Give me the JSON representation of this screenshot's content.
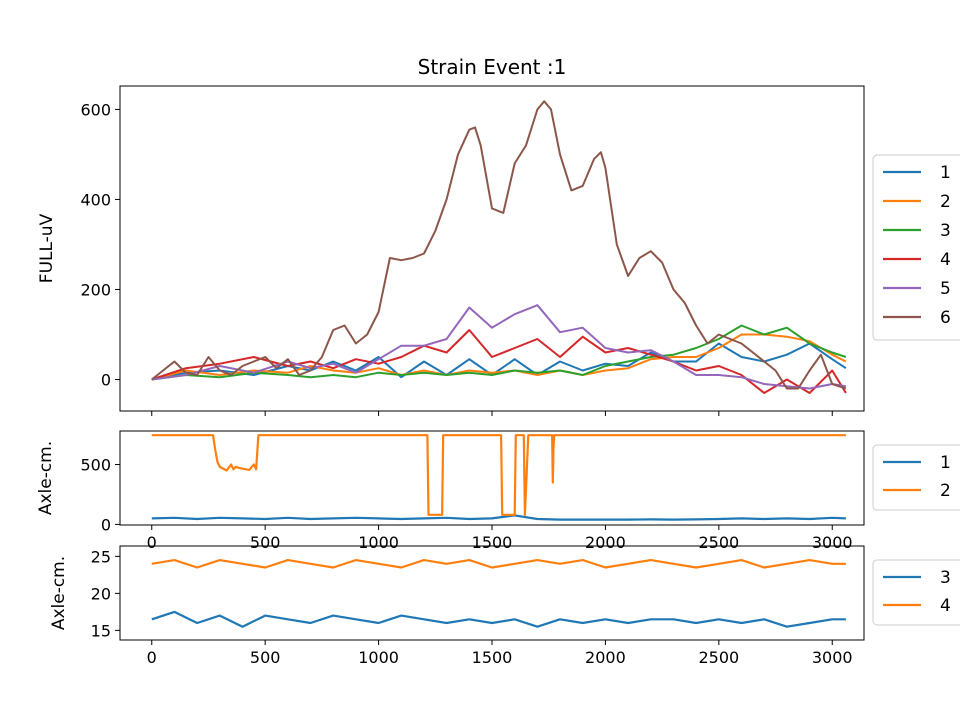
{
  "chart_data": [
    {
      "type": "line",
      "title": "Strain Event :1",
      "xlabel": "",
      "ylabel": "FULL-uV",
      "xlim": [
        -140,
        3140
      ],
      "ylim": [
        -70,
        652
      ],
      "xticks": [
        0,
        500,
        1000,
        1500,
        2000,
        2500,
        3000
      ],
      "xtick_labels_visible": false,
      "yticks": [
        0,
        200,
        400,
        600
      ],
      "legend": "outside-right",
      "series": [
        {
          "name": "1",
          "color": "#1f77b4",
          "x": [
            0,
            150,
            300,
            450,
            600,
            700,
            800,
            900,
            1000,
            1100,
            1200,
            1300,
            1400,
            1500,
            1600,
            1700,
            1800,
            1900,
            2000,
            2100,
            2200,
            2300,
            2400,
            2500,
            2600,
            2700,
            2800,
            2900,
            3000,
            3060
          ],
          "y": [
            0,
            15,
            20,
            10,
            30,
            20,
            40,
            20,
            50,
            5,
            40,
            10,
            45,
            10,
            45,
            10,
            40,
            20,
            35,
            30,
            60,
            40,
            40,
            80,
            50,
            40,
            55,
            80,
            45,
            25
          ]
        },
        {
          "name": "2",
          "color": "#ff7f0e",
          "x": [
            0,
            150,
            300,
            450,
            600,
            700,
            800,
            900,
            1000,
            1100,
            1200,
            1300,
            1400,
            1500,
            1600,
            1700,
            1800,
            1900,
            2000,
            2100,
            2200,
            2300,
            2400,
            2500,
            2600,
            2700,
            2800,
            2900,
            3000,
            3060
          ],
          "y": [
            0,
            20,
            10,
            20,
            15,
            30,
            20,
            15,
            25,
            10,
            20,
            10,
            20,
            15,
            20,
            10,
            20,
            10,
            20,
            25,
            45,
            50,
            50,
            70,
            100,
            100,
            95,
            85,
            55,
            40
          ]
        },
        {
          "name": "3",
          "color": "#2ca02c",
          "x": [
            0,
            150,
            300,
            450,
            600,
            700,
            800,
            900,
            1000,
            1100,
            1200,
            1300,
            1400,
            1500,
            1600,
            1700,
            1800,
            1900,
            2000,
            2100,
            2200,
            2300,
            2400,
            2500,
            2600,
            2700,
            2800,
            2900,
            3000,
            3060
          ],
          "y": [
            0,
            10,
            5,
            15,
            10,
            5,
            10,
            5,
            15,
            10,
            15,
            10,
            15,
            10,
            20,
            15,
            20,
            10,
            30,
            40,
            50,
            55,
            70,
            90,
            120,
            100,
            115,
            80,
            60,
            50
          ]
        },
        {
          "name": "4",
          "color": "#d62728",
          "x": [
            0,
            150,
            300,
            450,
            600,
            700,
            800,
            900,
            1000,
            1100,
            1200,
            1300,
            1400,
            1500,
            1600,
            1700,
            1800,
            1900,
            2000,
            2100,
            2200,
            2300,
            2400,
            2500,
            2600,
            2700,
            2800,
            2900,
            3000,
            3060
          ],
          "y": [
            0,
            25,
            35,
            50,
            30,
            40,
            25,
            45,
            35,
            50,
            75,
            60,
            110,
            50,
            70,
            90,
            50,
            95,
            60,
            70,
            55,
            40,
            20,
            30,
            10,
            -30,
            0,
            -30,
            20,
            -30
          ]
        },
        {
          "name": "5",
          "color": "#9467bd",
          "x": [
            0,
            150,
            300,
            450,
            600,
            700,
            800,
            900,
            1000,
            1100,
            1200,
            1300,
            1400,
            1500,
            1600,
            1700,
            1800,
            1900,
            2000,
            2100,
            2200,
            2300,
            2400,
            2500,
            2600,
            2700,
            2800,
            2900,
            3000,
            3060
          ],
          "y": [
            0,
            10,
            30,
            15,
            40,
            25,
            35,
            15,
            45,
            75,
            75,
            90,
            160,
            115,
            145,
            165,
            105,
            115,
            70,
            60,
            65,
            40,
            10,
            10,
            5,
            -10,
            -15,
            -20,
            -10,
            -15
          ]
        },
        {
          "name": "6",
          "color": "#8c564b",
          "x": [
            0,
            50,
            100,
            150,
            200,
            250,
            300,
            350,
            400,
            450,
            500,
            550,
            600,
            650,
            700,
            750,
            800,
            850,
            900,
            950,
            1000,
            1050,
            1100,
            1150,
            1200,
            1250,
            1300,
            1350,
            1400,
            1425,
            1450,
            1500,
            1550,
            1600,
            1650,
            1700,
            1730,
            1760,
            1800,
            1850,
            1900,
            1950,
            1980,
            2000,
            2050,
            2100,
            2150,
            2200,
            2250,
            2300,
            2350,
            2400,
            2450,
            2500,
            2550,
            2600,
            2650,
            2700,
            2750,
            2800,
            2850,
            2900,
            2950,
            3000,
            3060
          ],
          "y": [
            0,
            20,
            40,
            15,
            10,
            50,
            20,
            10,
            30,
            40,
            50,
            25,
            45,
            10,
            20,
            50,
            110,
            120,
            80,
            100,
            150,
            270,
            265,
            270,
            280,
            330,
            400,
            500,
            555,
            560,
            520,
            380,
            370,
            480,
            520,
            600,
            618,
            600,
            500,
            420,
            430,
            490,
            505,
            470,
            300,
            230,
            270,
            285,
            260,
            200,
            170,
            120,
            80,
            100,
            90,
            80,
            60,
            40,
            20,
            -20,
            -20,
            20,
            55,
            -10,
            -20
          ]
        }
      ]
    },
    {
      "type": "line",
      "xlabel": "",
      "ylabel": "Axle-cm.",
      "xlim": [
        -140,
        3140
      ],
      "ylim": [
        -5,
        780
      ],
      "yticks": [
        0,
        500
      ],
      "xticks": [
        0,
        500,
        1000,
        1500,
        2000,
        2500,
        3000
      ],
      "xtick_labels_visible": true,
      "legend": "outside-right",
      "series": [
        {
          "name": "1",
          "color": "#1f77b4",
          "x": [
            0,
            100,
            200,
            300,
            400,
            500,
            600,
            700,
            800,
            900,
            1000,
            1100,
            1200,
            1300,
            1400,
            1500,
            1600,
            1700,
            1800,
            1900,
            2000,
            2100,
            2200,
            2300,
            2400,
            2500,
            2600,
            2700,
            2800,
            2900,
            3000,
            3060
          ],
          "y": [
            50,
            55,
            45,
            55,
            50,
            45,
            55,
            45,
            50,
            55,
            50,
            45,
            50,
            55,
            45,
            50,
            75,
            45,
            40,
            40,
            40,
            40,
            42,
            40,
            42,
            45,
            50,
            45,
            50,
            45,
            55,
            50
          ]
        },
        {
          "name": "2",
          "color": "#ff7f0e",
          "x": [
            0,
            270,
            280,
            290,
            300,
            330,
            350,
            360,
            370,
            400,
            430,
            450,
            460,
            470,
            1215,
            1220,
            1240,
            1280,
            1285,
            1540,
            1545,
            1560,
            1600,
            1605,
            1640,
            1645,
            1660,
            1765,
            1768,
            1771,
            1774,
            3060
          ],
          "y": [
            745,
            745,
            620,
            520,
            480,
            450,
            500,
            460,
            480,
            465,
            455,
            500,
            460,
            745,
            745,
            80,
            80,
            80,
            745,
            745,
            80,
            80,
            80,
            745,
            745,
            80,
            745,
            745,
            350,
            650,
            745,
            745
          ]
        }
      ]
    },
    {
      "type": "line",
      "xlabel": "",
      "ylabel": "Axle-cm.",
      "xlim": [
        -140,
        3140
      ],
      "ylim": [
        13.7,
        26.4
      ],
      "yticks": [
        15,
        20,
        25
      ],
      "xticks": [
        0,
        500,
        1000,
        1500,
        2000,
        2500,
        3000
      ],
      "xtick_labels_visible": true,
      "legend": "outside-right",
      "series": [
        {
          "name": "3",
          "color": "#1f77b4",
          "x": [
            0,
            100,
            200,
            300,
            400,
            500,
            600,
            700,
            800,
            900,
            1000,
            1100,
            1200,
            1300,
            1400,
            1500,
            1600,
            1700,
            1800,
            1900,
            2000,
            2100,
            2200,
            2300,
            2400,
            2500,
            2600,
            2700,
            2800,
            2900,
            3000,
            3060
          ],
          "y": [
            16.5,
            17.5,
            16.0,
            17.0,
            15.5,
            17.0,
            16.5,
            16.0,
            17.0,
            16.5,
            16.0,
            17.0,
            16.5,
            16.0,
            16.5,
            16.0,
            16.5,
            15.5,
            16.5,
            16.0,
            16.5,
            16.0,
            16.5,
            16.5,
            16.0,
            16.5,
            16.0,
            16.5,
            15.5,
            16.0,
            16.5,
            16.5
          ]
        },
        {
          "name": "4",
          "color": "#ff7f0e",
          "x": [
            0,
            100,
            200,
            300,
            400,
            500,
            600,
            700,
            800,
            900,
            1000,
            1100,
            1200,
            1300,
            1400,
            1500,
            1600,
            1700,
            1800,
            1900,
            2000,
            2100,
            2200,
            2300,
            2400,
            2500,
            2600,
            2700,
            2800,
            2900,
            3000,
            3060
          ],
          "y": [
            24.0,
            24.5,
            23.5,
            24.5,
            24.0,
            23.5,
            24.5,
            24.0,
            23.5,
            24.5,
            24.0,
            23.5,
            24.5,
            24.0,
            24.5,
            23.5,
            24.0,
            24.5,
            24.0,
            24.5,
            23.5,
            24.0,
            24.5,
            24.0,
            23.5,
            24.0,
            24.5,
            23.5,
            24.0,
            24.5,
            24.0,
            24.0
          ]
        }
      ]
    }
  ]
}
